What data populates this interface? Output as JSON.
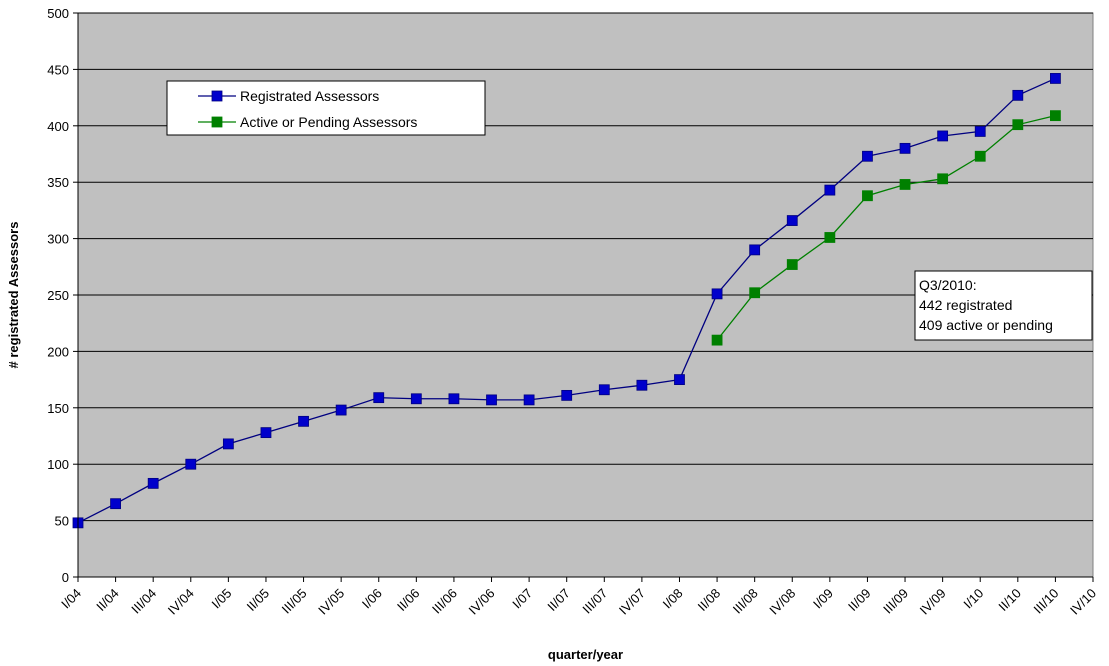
{
  "chart_data": {
    "type": "line",
    "title": "",
    "xlabel": "quarter/year",
    "ylabel": "# registrated Assessors",
    "ylim": [
      0,
      500
    ],
    "yticks": [
      0,
      50,
      100,
      150,
      200,
      250,
      300,
      350,
      400,
      450,
      500
    ],
    "grid": true,
    "legend_position": "top-left",
    "plot_background": "#c0c0c0",
    "categories": [
      "I/04",
      "II/04",
      "III/04",
      "IV/04",
      "I/05",
      "II/05",
      "III/05",
      "IV/05",
      "I/06",
      "II/06",
      "III/06",
      "IV/06",
      "I/07",
      "II/07",
      "III/07",
      "IV/07",
      "I/08",
      "II/08",
      "III/08",
      "IV/08",
      "I/09",
      "II/09",
      "III/09",
      "IV/09",
      "I/10",
      "II/10",
      "III/10",
      "IV/10"
    ],
    "series": [
      {
        "name": "Registrated Assessors",
        "color": "#0000cc",
        "line_color": "#000080",
        "values": [
          48,
          65,
          83,
          100,
          118,
          128,
          138,
          148,
          159,
          158,
          158,
          157,
          157,
          161,
          166,
          170,
          175,
          251,
          290,
          316,
          343,
          373,
          380,
          391,
          395,
          427,
          442,
          null
        ]
      },
      {
        "name": "Active or Pending Assessors",
        "color": "#008000",
        "line_color": "#008000",
        "values": [
          null,
          null,
          null,
          null,
          null,
          null,
          null,
          null,
          null,
          null,
          null,
          null,
          null,
          null,
          null,
          null,
          null,
          210,
          252,
          277,
          301,
          338,
          348,
          353,
          373,
          401,
          409,
          null
        ]
      }
    ],
    "annotation": {
      "lines": [
        "Q3/2010:",
        "442 registrated",
        "409 active or pending"
      ]
    }
  }
}
